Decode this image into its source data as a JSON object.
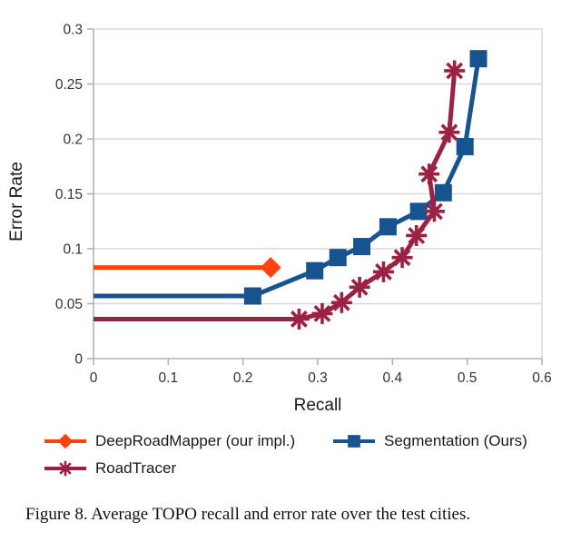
{
  "figure": {
    "caption": "Figure 8. Average TOPO recall and error rate over the test cities."
  },
  "chart_data": {
    "type": "line",
    "title": "",
    "xlabel": "Recall",
    "ylabel": "Error Rate",
    "xlim": [
      0,
      0.6
    ],
    "ylim": [
      0,
      0.3
    ],
    "x_tick_values": [
      0,
      0.1,
      0.2,
      0.3,
      0.4,
      0.5,
      0.6
    ],
    "x_tick_labels": [
      "0",
      "0.1",
      "0.2",
      "0.3",
      "0.4",
      "0.5",
      "0.6"
    ],
    "y_tick_values": [
      0,
      0.05,
      0.1,
      0.15,
      0.2,
      0.25,
      0.3
    ],
    "y_tick_labels": [
      "0",
      "0.05",
      "0.1",
      "0.15",
      "0.2",
      "0.25",
      "0.3"
    ],
    "grid": "horizontal-gridlines-on",
    "legend_position": "bottom",
    "axis_color": "#b3b3b3",
    "gridline_color": "#d9d9d9",
    "tick_text_color": "#333333",
    "series": [
      {
        "name": "DeepRoadMapper (our impl.)",
        "color": "#ff420e",
        "marker": "diamond",
        "markers_skip_first": true,
        "points": [
          [
            0,
            0.083
          ],
          [
            0.237,
            0.083
          ]
        ]
      },
      {
        "name": "Segmentation (Ours)",
        "color": "#17538f",
        "marker": "square",
        "markers_skip_first": true,
        "points": [
          [
            0,
            0.057
          ],
          [
            0.213,
            0.057
          ],
          [
            0.296,
            0.08
          ],
          [
            0.327,
            0.092
          ],
          [
            0.359,
            0.102
          ],
          [
            0.394,
            0.12
          ],
          [
            0.435,
            0.134
          ],
          [
            0.468,
            0.151
          ],
          [
            0.497,
            0.193
          ],
          [
            0.515,
            0.273
          ]
        ]
      },
      {
        "name": "RoadTracer",
        "color": "#9b2242",
        "marker": "asterisk",
        "markers_skip_first": true,
        "points": [
          [
            0,
            0.036
          ],
          [
            0.275,
            0.036
          ],
          [
            0.306,
            0.041
          ],
          [
            0.332,
            0.051
          ],
          [
            0.356,
            0.065
          ],
          [
            0.388,
            0.079
          ],
          [
            0.413,
            0.092
          ],
          [
            0.432,
            0.112
          ],
          [
            0.456,
            0.134
          ],
          [
            0.449,
            0.168
          ],
          [
            0.476,
            0.206
          ],
          [
            0.483,
            0.262
          ]
        ]
      }
    ]
  }
}
